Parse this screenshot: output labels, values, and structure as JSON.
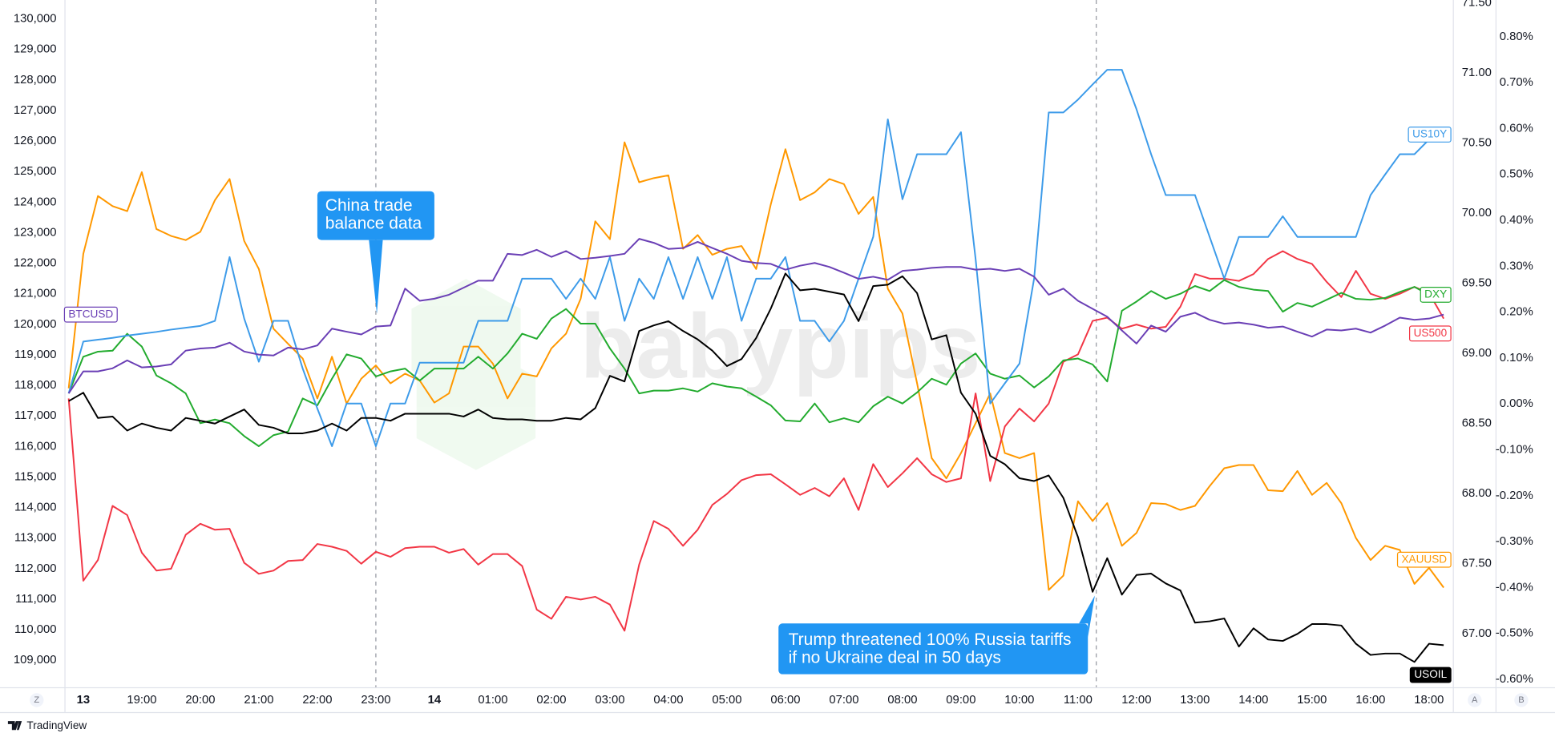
{
  "chart_data": {
    "type": "line",
    "watermark": "babypips",
    "grid": false,
    "categories": [
      null,
      "13",
      null,
      null,
      null,
      "19:00",
      null,
      null,
      null,
      "20:00",
      null,
      null,
      null,
      "21:00",
      null,
      null,
      null,
      "22:00",
      null,
      null,
      null,
      "23:00",
      null,
      null,
      null,
      "14",
      null,
      null,
      null,
      "01:00",
      null,
      null,
      null,
      "02:00",
      null,
      null,
      null,
      "03:00",
      null,
      null,
      null,
      "04:00",
      null,
      null,
      null,
      "05:00",
      null,
      null,
      null,
      "06:00",
      null,
      null,
      null,
      "07:00",
      null,
      null,
      null,
      "08:00",
      null,
      null,
      null,
      "09:00",
      null,
      null,
      null,
      "10:00",
      null,
      null,
      null,
      "11:00",
      null,
      null,
      null,
      "12:00",
      null,
      null,
      null,
      "13:00",
      null,
      null,
      null,
      "14:00",
      null,
      null,
      null,
      "15:00",
      null,
      null,
      null,
      "16:00",
      null,
      null,
      null,
      "18:00",
      null
    ],
    "ylim": [
      108120,
      130620
    ],
    "yticks": [
      {
        "value": 109000,
        "label": "109,000"
      },
      {
        "value": 110000,
        "label": "110,000"
      },
      {
        "value": 111000,
        "label": "111,000"
      },
      {
        "value": 112000,
        "label": "112,000"
      },
      {
        "value": 113000,
        "label": "113,000"
      },
      {
        "value": 114000,
        "label": "114,000"
      },
      {
        "value": 115000,
        "label": "115,000"
      },
      {
        "value": 116000,
        "label": "116,000"
      },
      {
        "value": 117000,
        "label": "117,000"
      },
      {
        "value": 118000,
        "label": "118,000"
      },
      {
        "value": 119000,
        "label": "119,000"
      },
      {
        "value": 120000,
        "label": "120,000"
      },
      {
        "value": 121000,
        "label": "121,000"
      },
      {
        "value": 122000,
        "label": "122,000"
      },
      {
        "value": 123000,
        "label": "123,000"
      },
      {
        "value": 124000,
        "label": "124,000"
      },
      {
        "value": 125000,
        "label": "125,000"
      },
      {
        "value": 126000,
        "label": "126,000"
      },
      {
        "value": 127000,
        "label": "127,000"
      },
      {
        "value": 128000,
        "label": "128,000"
      },
      {
        "value": 129000,
        "label": "129,000"
      },
      {
        "value": 130000,
        "label": "130,000"
      }
    ],
    "y2lim": [
      66.62,
      71.52
    ],
    "y2ticks": [
      {
        "value": 67,
        "label": "67.00"
      },
      {
        "value": 67.5,
        "label": "67.50"
      },
      {
        "value": 68,
        "label": "68.00"
      },
      {
        "value": 68.5,
        "label": "68.50"
      },
      {
        "value": 69,
        "label": "69.00"
      },
      {
        "value": 69.5,
        "label": "69.50"
      },
      {
        "value": 70,
        "label": "70.00"
      },
      {
        "value": 70.5,
        "label": "70.50"
      },
      {
        "value": 71,
        "label": "71.00"
      },
      {
        "value": 71.5,
        "label": "71.50"
      }
    ],
    "y3lim": [
      -0.617,
      0.88
    ],
    "y3ticks": [
      {
        "value": -0.6,
        "label": "-0.60%"
      },
      {
        "value": -0.5,
        "label": "-0.50%"
      },
      {
        "value": -0.4,
        "label": "-0.40%"
      },
      {
        "value": -0.3,
        "label": "-0.30%"
      },
      {
        "value": -0.2,
        "label": "-0.20%"
      },
      {
        "value": -0.1,
        "label": "-0.10%"
      },
      {
        "value": 0,
        "label": "0.00%"
      },
      {
        "value": 0.1,
        "label": "0.10%"
      },
      {
        "value": 0.2,
        "label": "0.20%"
      },
      {
        "value": 0.3,
        "label": "0.30%"
      },
      {
        "value": 0.4,
        "label": "0.40%"
      },
      {
        "value": 0.5,
        "label": "0.50%"
      },
      {
        "value": 0.6,
        "label": "0.60%"
      },
      {
        "value": 0.7,
        "label": "0.70%"
      },
      {
        "value": 0.8,
        "label": "0.80%"
      }
    ],
    "series": [
      {
        "name": "XAUUSD",
        "color": "#ff9800",
        "axis": "y3",
        "values": [
          0.034,
          0.327,
          0.453,
          0.431,
          0.42,
          0.505,
          0.381,
          0.366,
          0.357,
          0.375,
          0.444,
          0.49,
          0.355,
          0.294,
          0.164,
          0.131,
          0.099,
          0.012,
          0.103,
          0.001,
          0.055,
          0.084,
          0.045,
          0.066,
          0.051,
          0.003,
          0.023,
          0.125,
          0.125,
          0.088,
          0.012,
          0.066,
          0.06,
          0.121,
          0.153,
          0.229,
          0.398,
          0.359,
          0.57,
          0.483,
          0.492,
          0.498,
          0.338,
          0.368,
          0.325,
          0.338,
          0.344,
          0.294,
          0.435,
          0.555,
          0.444,
          0.461,
          0.49,
          0.479,
          0.414,
          0.451,
          0.251,
          0.197,
          0.045,
          -0.118,
          -0.162,
          -0.107,
          -0.042,
          0.023,
          -0.107,
          -0.118,
          -0.107,
          -0.405,
          -0.374,
          -0.212,
          -0.255,
          -0.216,
          -0.309,
          -0.281,
          -0.216,
          -0.218,
          -0.231,
          -0.222,
          -0.179,
          -0.14,
          -0.133,
          -0.133,
          -0.188,
          -0.19,
          -0.146,
          -0.198,
          -0.172,
          -0.216,
          -0.292,
          -0.34,
          -0.309,
          -0.318,
          -0.392,
          -0.357,
          -0.4
        ]
      },
      {
        "name": "US500",
        "color": "#f23645",
        "axis": "y3",
        "values": [
          0.012,
          -0.385,
          -0.34,
          -0.222,
          -0.242,
          -0.324,
          -0.363,
          -0.359,
          -0.285,
          -0.261,
          -0.274,
          -0.272,
          -0.346,
          -0.37,
          -0.363,
          -0.342,
          -0.34,
          -0.305,
          -0.311,
          -0.32,
          -0.348,
          -0.322,
          -0.333,
          -0.314,
          -0.311,
          -0.311,
          -0.324,
          -0.316,
          -0.35,
          -0.327,
          -0.327,
          -0.353,
          -0.448,
          -0.468,
          -0.42,
          -0.426,
          -0.42,
          -0.437,
          -0.494,
          -0.35,
          -0.255,
          -0.272,
          -0.309,
          -0.274,
          -0.22,
          -0.196,
          -0.166,
          -0.155,
          -0.153,
          -0.175,
          -0.198,
          -0.183,
          -0.201,
          -0.162,
          -0.231,
          -0.131,
          -0.181,
          -0.151,
          -0.118,
          -0.153,
          -0.17,
          -0.162,
          0.023,
          -0.168,
          -0.049,
          -0.01,
          -0.038,
          0.001,
          0.092,
          0.108,
          0.181,
          0.188,
          0.164,
          0.173,
          0.164,
          0.168,
          0.212,
          0.283,
          0.273,
          0.273,
          0.268,
          0.283,
          0.316,
          0.333,
          0.316,
          0.305,
          0.266,
          0.233,
          0.29,
          0.24,
          0.229,
          0.24,
          0.255,
          0.242,
          0.186
        ]
      },
      {
        "name": "DXY",
        "color": "#22ab2e",
        "axis": "y3",
        "values": [
          0.023,
          0.103,
          0.114,
          0.116,
          0.153,
          0.125,
          0.062,
          0.045,
          0.023,
          -0.042,
          -0.034,
          -0.042,
          -0.07,
          -0.092,
          -0.068,
          -0.06,
          0.012,
          -0.003,
          0.055,
          0.108,
          0.099,
          0.06,
          0.071,
          0.077,
          0.051,
          0.077,
          0.077,
          0.077,
          0.103,
          0.077,
          0.11,
          0.153,
          0.142,
          0.186,
          0.207,
          0.175,
          0.175,
          0.121,
          0.077,
          0.023,
          0.029,
          0.029,
          0.034,
          0.027,
          0.045,
          0.038,
          0.034,
          0.016,
          -0.003,
          -0.036,
          -0.038,
          0.001,
          -0.04,
          -0.031,
          -0.04,
          -0.005,
          0.016,
          0.001,
          0.025,
          0.055,
          0.042,
          0.088,
          0.11,
          0.066,
          0.055,
          0.062,
          0.036,
          0.06,
          0.095,
          0.099,
          0.086,
          0.049,
          0.203,
          0.223,
          0.246,
          0.229,
          0.24,
          0.257,
          0.246,
          0.27,
          0.255,
          0.249,
          0.246,
          0.201,
          0.22,
          0.212,
          0.227,
          0.242,
          0.229,
          0.227,
          0.231,
          0.244,
          0.255,
          0.238,
          0.238
        ]
      },
      {
        "name": "US10Y",
        "color": "#3d9be9",
        "axis": "y3",
        "values": [
          0.023,
          0.136,
          0.14,
          0.144,
          0.149,
          0.153,
          0.157,
          0.162,
          0.166,
          0.17,
          0.181,
          0.32,
          0.186,
          0.092,
          0.181,
          0.181,
          0.077,
          -0.01,
          -0.092,
          0.001,
          0.001,
          -0.092,
          0.001,
          0.001,
          0.09,
          0.09,
          0.09,
          0.09,
          0.181,
          0.181,
          0.181,
          0.273,
          0.273,
          0.273,
          0.229,
          0.273,
          0.229,
          0.32,
          0.181,
          0.273,
          0.229,
          0.32,
          0.229,
          0.32,
          0.229,
          0.32,
          0.181,
          0.273,
          0.273,
          0.32,
          0.181,
          0.181,
          0.136,
          0.181,
          0.273,
          0.364,
          0.62,
          0.446,
          0.544,
          0.544,
          0.544,
          0.592,
          0.316,
          0.001,
          0.045,
          0.088,
          0.273,
          0.635,
          0.635,
          0.663,
          0.696,
          0.728,
          0.728,
          0.642,
          0.544,
          0.455,
          0.455,
          0.455,
          0.364,
          0.273,
          0.364,
          0.364,
          0.364,
          0.409,
          0.364,
          0.364,
          0.364,
          0.364,
          0.364,
          0.455,
          0.5,
          0.544,
          0.544,
          0.576,
          0.576
        ]
      },
      {
        "name": "BTCUSD",
        "color": "#6a3fb5",
        "axis": "y",
        "values": [
          117740,
          118460,
          118460,
          118560,
          118820,
          118590,
          118620,
          118690,
          119140,
          119210,
          119240,
          119400,
          119110,
          119010,
          118980,
          119240,
          119180,
          119310,
          119860,
          119760,
          119670,
          119930,
          119960,
          121170,
          120770,
          120840,
          120970,
          121200,
          121430,
          121430,
          122310,
          122270,
          122440,
          122210,
          122400,
          122140,
          122180,
          122240,
          122310,
          122800,
          122670,
          122470,
          122500,
          122700,
          122500,
          122310,
          122080,
          122010,
          121980,
          121790,
          121920,
          122010,
          121880,
          121690,
          121490,
          121560,
          121460,
          121750,
          121790,
          121850,
          121880,
          121880,
          121790,
          121820,
          121750,
          121820,
          121560,
          120970,
          121170,
          120770,
          120510,
          120250,
          119800,
          119370,
          119960,
          119760,
          120250,
          120380,
          120150,
          120020,
          120060,
          119990,
          119890,
          119930,
          119760,
          119600,
          119830,
          119800,
          119860,
          119730,
          119960,
          120220,
          120150,
          120190,
          120320
        ]
      },
      {
        "name": "USOIL",
        "color": "#000000",
        "axis": "y2",
        "values": [
          68.66,
          68.72,
          68.54,
          68.55,
          68.45,
          68.5,
          68.47,
          68.45,
          68.54,
          68.52,
          68.5,
          68.55,
          68.6,
          68.49,
          68.47,
          68.43,
          68.43,
          68.45,
          68.5,
          68.45,
          68.54,
          68.54,
          68.52,
          68.57,
          68.57,
          68.57,
          68.57,
          68.55,
          68.6,
          68.54,
          68.53,
          68.53,
          68.52,
          68.52,
          68.54,
          68.53,
          68.61,
          68.84,
          68.8,
          69.16,
          69.2,
          69.23,
          69.16,
          69.1,
          69.02,
          68.91,
          68.96,
          69.11,
          69.32,
          69.57,
          69.45,
          69.46,
          69.44,
          69.42,
          69.23,
          69.48,
          69.49,
          69.55,
          69.43,
          69.1,
          69.13,
          68.72,
          68.57,
          68.27,
          68.21,
          68.11,
          68.09,
          68.13,
          67.97,
          67.69,
          67.3,
          67.54,
          67.28,
          67.42,
          67.43,
          67.36,
          67.31,
          67.08,
          67.09,
          67.11,
          66.91,
          67.04,
          66.96,
          66.95,
          67.0,
          67.07,
          67.07,
          67.06,
          66.93,
          66.85,
          66.86,
          66.86,
          66.8,
          66.93,
          66.92
        ]
      }
    ],
    "annotations": [
      {
        "lines": [
          "China trade",
          "balance data"
        ]
      },
      {
        "lines": [
          "Trump threatened 100% Russia tariffs",
          "if no Ukraine deal in 50 days"
        ]
      }
    ]
  },
  "toolbar": {
    "left": "Z",
    "right": [
      "A",
      "B"
    ]
  },
  "footer": {
    "brand": "TradingView"
  }
}
